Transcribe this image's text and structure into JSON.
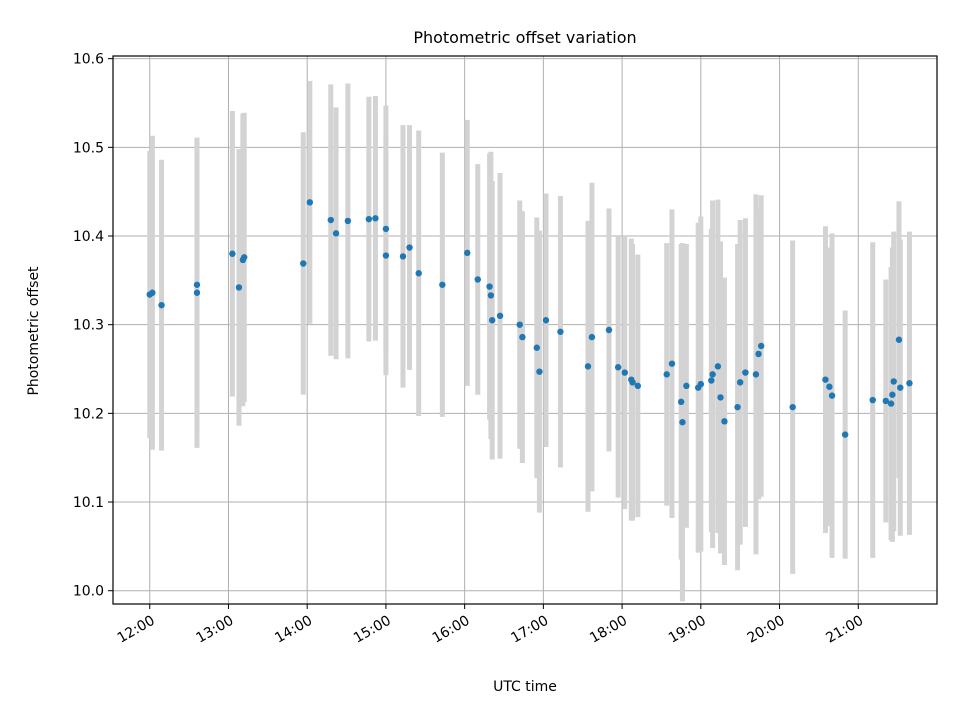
{
  "chart_data": {
    "type": "scatter",
    "title": "Photometric offset variation",
    "xlabel": "UTC time",
    "ylabel": "Photometric offset",
    "xlim": [
      "11:32",
      "22:00"
    ],
    "ylim": [
      9.985,
      10.603
    ],
    "x_ticks": [
      "12:00",
      "13:00",
      "14:00",
      "15:00",
      "16:00",
      "17:00",
      "18:00",
      "19:00",
      "20:00",
      "21:00"
    ],
    "y_ticks": [
      10.0,
      10.1,
      10.2,
      10.3,
      10.4,
      10.5,
      10.6
    ],
    "grid": true,
    "colors": {
      "marker": "#1f77b4",
      "errorbar": "#d3d3d3",
      "grid": "#b0b0b0",
      "axis": "#000000"
    },
    "series": [
      {
        "x": [
          "12:00",
          "12:02",
          "12:09",
          "12:36",
          "12:36",
          "13:03",
          "13:08",
          "13:11",
          "13:12",
          "13:57",
          "14:02",
          "14:18",
          "14:22",
          "14:31",
          "14:47",
          "14:52",
          "15:00",
          "15:00",
          "15:13",
          "15:18",
          "15:25",
          "15:43",
          "16:02",
          "16:10",
          "16:19",
          "16:20",
          "16:21",
          "16:27",
          "16:42",
          "16:44",
          "16:55",
          "16:57",
          "17:02",
          "17:13",
          "17:34",
          "17:37",
          "17:50",
          "17:57",
          "18:02",
          "18:07",
          "18:08",
          "18:12",
          "18:34",
          "18:38",
          "18:45",
          "18:46",
          "18:49",
          "18:58",
          "19:00",
          "19:08",
          "19:09",
          "19:13",
          "19:15",
          "19:18",
          "19:28",
          "19:30",
          "19:34",
          "19:42",
          "19:44",
          "19:46",
          "20:10",
          "20:35",
          "20:38",
          "20:40",
          "20:50",
          "21:11",
          "21:21",
          "21:25",
          "21:26",
          "21:27",
          "21:31",
          "21:32",
          "21:39"
        ],
        "y": [
          10.334,
          10.336,
          10.322,
          10.345,
          10.336,
          10.38,
          10.342,
          10.373,
          10.376,
          10.369,
          10.438,
          10.418,
          10.403,
          10.417,
          10.419,
          10.42,
          10.408,
          10.378,
          10.377,
          10.387,
          10.358,
          10.345,
          10.381,
          10.351,
          10.343,
          10.333,
          10.305,
          10.31,
          10.3,
          10.286,
          10.274,
          10.247,
          10.305,
          10.292,
          10.253,
          10.286,
          10.294,
          10.252,
          10.246,
          10.238,
          10.235,
          10.231,
          10.244,
          10.256,
          10.213,
          10.19,
          10.231,
          10.229,
          10.233,
          10.237,
          10.244,
          10.253,
          10.218,
          10.191,
          10.207,
          10.235,
          10.246,
          10.244,
          10.267,
          10.276,
          10.207,
          10.238,
          10.23,
          10.22,
          10.176,
          10.215,
          10.214,
          10.211,
          10.221,
          10.236,
          10.283,
          10.229,
          10.234
        ],
        "err": [
          0.162,
          0.177,
          0.164,
          0.165,
          0.175,
          0.161,
          0.156,
          0.165,
          0.163,
          0.148,
          0.137,
          0.153,
          0.142,
          0.155,
          0.138,
          0.138,
          0.139,
          0.135,
          0.148,
          0.138,
          0.161,
          0.149,
          0.15,
          0.13,
          0.15,
          0.162,
          0.157,
          0.161,
          0.14,
          0.142,
          0.147,
          0.159,
          0.143,
          0.153,
          0.164,
          0.174,
          0.137,
          0.147,
          0.154,
          0.159,
          0.156,
          0.148,
          0.148,
          0.174,
          0.178,
          0.202,
          0.16,
          0.186,
          0.189,
          0.171,
          0.196,
          0.188,
          0.176,
          0.162,
          0.184,
          0.183,
          0.174,
          0.203,
          0.164,
          0.17,
          0.188,
          0.173,
          0.157,
          0.183,
          0.14,
          0.178,
          0.137,
          0.154,
          0.166,
          0.169,
          0.156,
          0.167,
          0.171
        ]
      }
    ]
  }
}
